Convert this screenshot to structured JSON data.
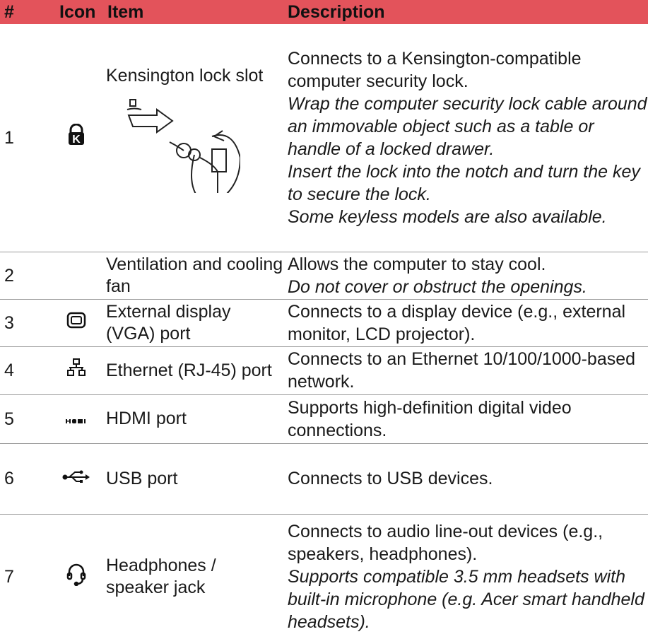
{
  "table": {
    "header": [
      "#",
      "Icon",
      "Item",
      "Description"
    ],
    "rows": [
      {
        "number": "1",
        "item": "Kensington lock slot",
        "description": [
          {
            "text": "Connects to a Kensington-compatible computer security lock.",
            "italic": false
          },
          {
            "text": "Wrap the computer security lock cable around an immovable object such as a table or handle of a locked drawer.",
            "italic": true
          },
          {
            "text": "Insert the lock into the notch and turn the key to secure the lock.",
            "italic": true
          },
          {
            "text": "Some keyless models are also available.",
            "italic": true
          }
        ]
      },
      {
        "number": "2",
        "item": "Ventilation and cooling fan",
        "description": [
          {
            "text": "Allows the computer to stay cool.",
            "italic": false
          },
          {
            "text": "Do not cover or obstruct the openings.",
            "italic": true
          }
        ]
      },
      {
        "number": "3",
        "item": "External display (VGA) port",
        "description": [
          {
            "text": "Connects to a display device (e.g., external monitor, LCD projector).",
            "italic": false
          }
        ]
      },
      {
        "number": "4",
        "item": "Ethernet (RJ-45) port",
        "description": [
          {
            "text": "Connects to an Ethernet 10/100/1000-based network.",
            "italic": false
          }
        ]
      },
      {
        "number": "5",
        "item": "HDMI port",
        "description": [
          {
            "text": "Supports high-definition digital video connections.",
            "italic": false
          }
        ]
      },
      {
        "number": "6",
        "item": "USB port",
        "description": [
          {
            "text": "Connects to USB devices.",
            "italic": false
          }
        ]
      },
      {
        "number": "7",
        "item": "Headphones / speaker jack",
        "description": [
          {
            "text": "Connects to audio line-out devices (e.g., speakers, headphones).",
            "italic": false
          },
          {
            "text": "Supports compatible 3.5 mm headsets with built-in microphone (e.g. Acer smart handheld headsets).",
            "italic": true
          }
        ]
      }
    ]
  }
}
